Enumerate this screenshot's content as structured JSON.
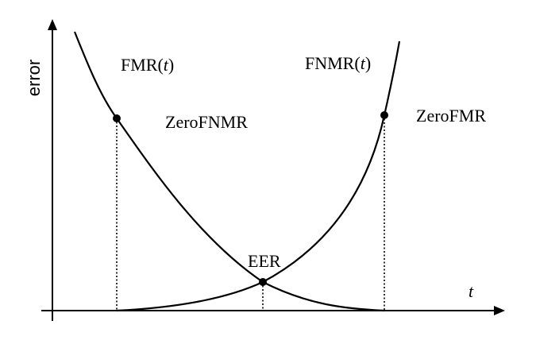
{
  "axes": {
    "y_label": "error",
    "x_label": "t"
  },
  "curves": [
    {
      "id": "fmr",
      "label_main": "FMR(",
      "label_var": "t",
      "label_end": ")"
    },
    {
      "id": "fnmr",
      "label_main": "FNMR(",
      "label_var": "t",
      "label_end": ")"
    }
  ],
  "points": [
    {
      "id": "zero-fnmr",
      "label": "ZeroFNMR"
    },
    {
      "id": "eer",
      "label": "EER"
    },
    {
      "id": "zero-fmr",
      "label": "ZeroFMR"
    }
  ]
}
